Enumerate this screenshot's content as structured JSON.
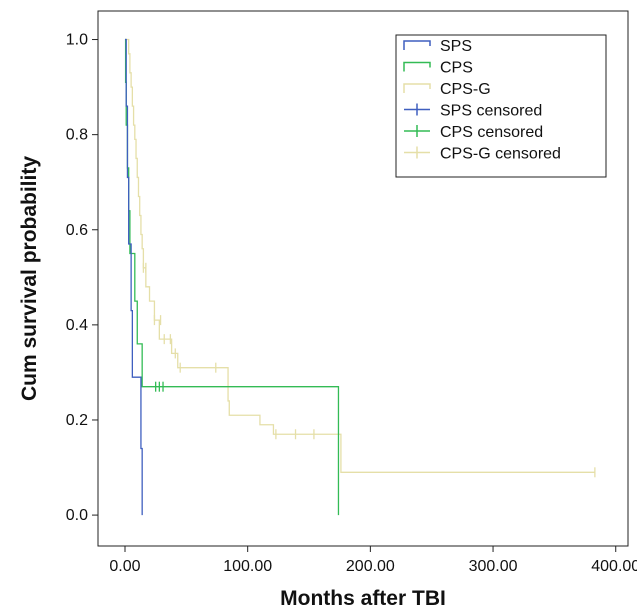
{
  "chart_data": {
    "type": "line",
    "xlabel": "Months after TBI",
    "ylabel": "Cum survival probability",
    "xlim": [
      -22,
      410
    ],
    "ylim": [
      -0.065,
      1.06
    ],
    "x_ticks": [
      0,
      100,
      200,
      300,
      400
    ],
    "x_tick_labels": [
      "0.00",
      "100.00",
      "200.00",
      "300.00",
      "400.00"
    ],
    "y_ticks": [
      0.0,
      0.2,
      0.4,
      0.6,
      0.8,
      1.0
    ],
    "y_tick_labels": [
      "0.0",
      "0.2",
      "0.4",
      "0.6",
      "0.8",
      "1.0"
    ],
    "grid": false,
    "legend_position": "top-right",
    "legend": [
      "SPS",
      "CPS",
      "CPS-G",
      "SPS censored",
      "CPS censored",
      "CPS-G censored"
    ],
    "series": [
      {
        "name": "SPS",
        "color": "#3f5fbf",
        "step_points": [
          [
            0,
            1.0
          ],
          [
            1,
            0.86
          ],
          [
            2,
            0.71
          ],
          [
            3,
            0.57
          ],
          [
            5,
            0.43
          ],
          [
            6,
            0.29
          ],
          [
            13,
            0.14
          ],
          [
            14,
            0.0
          ]
        ],
        "censored": []
      },
      {
        "name": "CPS",
        "color": "#33bb55",
        "step_points": [
          [
            0,
            1.0
          ],
          [
            0.5,
            0.91
          ],
          [
            1,
            0.82
          ],
          [
            2,
            0.73
          ],
          [
            3,
            0.64
          ],
          [
            4,
            0.55
          ],
          [
            8,
            0.45
          ],
          [
            10,
            0.36
          ],
          [
            14,
            0.27
          ],
          [
            174,
            0.0
          ]
        ],
        "censored": [
          [
            25,
            0.27
          ],
          [
            28,
            0.27
          ],
          [
            31,
            0.27
          ]
        ]
      },
      {
        "name": "CPS-G",
        "color": "#e5dfa8",
        "step_points": [
          [
            0,
            1.0
          ],
          [
            3,
            0.97
          ],
          [
            4,
            0.93
          ],
          [
            5,
            0.9
          ],
          [
            6,
            0.86
          ],
          [
            7,
            0.82
          ],
          [
            8,
            0.79
          ],
          [
            9,
            0.75
          ],
          [
            10,
            0.71
          ],
          [
            11,
            0.67
          ],
          [
            12,
            0.63
          ],
          [
            13,
            0.59
          ],
          [
            14,
            0.56
          ],
          [
            15,
            0.52
          ],
          [
            17,
            0.48
          ],
          [
            20,
            0.45
          ],
          [
            24,
            0.41
          ],
          [
            28,
            0.37
          ],
          [
            38,
            0.34
          ],
          [
            43,
            0.31
          ],
          [
            84,
            0.24
          ],
          [
            85,
            0.21
          ],
          [
            110,
            0.19
          ],
          [
            121,
            0.17
          ],
          [
            176,
            0.09
          ],
          [
            383,
            0.09
          ]
        ],
        "censored": [
          [
            15,
            0.52
          ],
          [
            17,
            0.52
          ],
          [
            24,
            0.41
          ],
          [
            29,
            0.41
          ],
          [
            32,
            0.37
          ],
          [
            37,
            0.37
          ],
          [
            41,
            0.34
          ],
          [
            45,
            0.31
          ],
          [
            74,
            0.31
          ],
          [
            123,
            0.17
          ],
          [
            139,
            0.17
          ],
          [
            154,
            0.17
          ],
          [
            383,
            0.09
          ]
        ]
      }
    ]
  }
}
